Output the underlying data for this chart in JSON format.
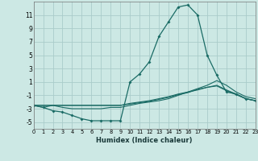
{
  "xlabel": "Humidex (Indice chaleur)",
  "background_color": "#cce8e4",
  "grid_color": "#aaccca",
  "line_color": "#1a6b65",
  "xlim": [
    0,
    23
  ],
  "ylim": [
    -6,
    13
  ],
  "yticks": [
    -5,
    -3,
    -1,
    1,
    3,
    5,
    7,
    9,
    11
  ],
  "xticks": [
    0,
    1,
    2,
    3,
    4,
    5,
    6,
    7,
    8,
    9,
    10,
    11,
    12,
    13,
    14,
    15,
    16,
    17,
    18,
    19,
    20,
    21,
    22,
    23
  ],
  "line1_y": [
    -2.5,
    -2.8,
    -3.3,
    -3.5,
    -4.0,
    -4.5,
    -4.8,
    -4.8,
    -4.8,
    -4.8,
    1.0,
    2.2,
    4.0,
    7.8,
    10.0,
    12.2,
    12.5,
    11.0,
    5.0,
    2.0,
    -0.5,
    -0.8,
    -1.5,
    -1.8
  ],
  "line2_y": [
    -2.5,
    -2.8,
    -2.5,
    -2.8,
    -3.0,
    -3.0,
    -3.0,
    -3.0,
    -2.8,
    -2.8,
    -2.5,
    -2.2,
    -2.0,
    -1.8,
    -1.5,
    -1.0,
    -0.5,
    0.0,
    0.5,
    1.2,
    0.5,
    -0.5,
    -1.2,
    -1.5
  ],
  "line3_y": [
    -2.5,
    -2.5,
    -2.5,
    -2.5,
    -2.5,
    -2.5,
    -2.5,
    -2.5,
    -2.5,
    -2.5,
    -2.2,
    -2.0,
    -1.8,
    -1.5,
    -1.2,
    -0.8,
    -0.5,
    -0.2,
    0.2,
    0.5,
    -0.2,
    -0.8,
    -1.5,
    -1.8
  ],
  "line4_y": [
    -2.5,
    -2.5,
    -2.5,
    -2.5,
    -2.5,
    -2.5,
    -2.5,
    -2.5,
    -2.5,
    -2.5,
    -2.3,
    -2.1,
    -1.9,
    -1.6,
    -1.3,
    -0.9,
    -0.6,
    -0.1,
    0.2,
    0.4,
    -0.3,
    -0.9,
    -1.5,
    -1.8
  ]
}
